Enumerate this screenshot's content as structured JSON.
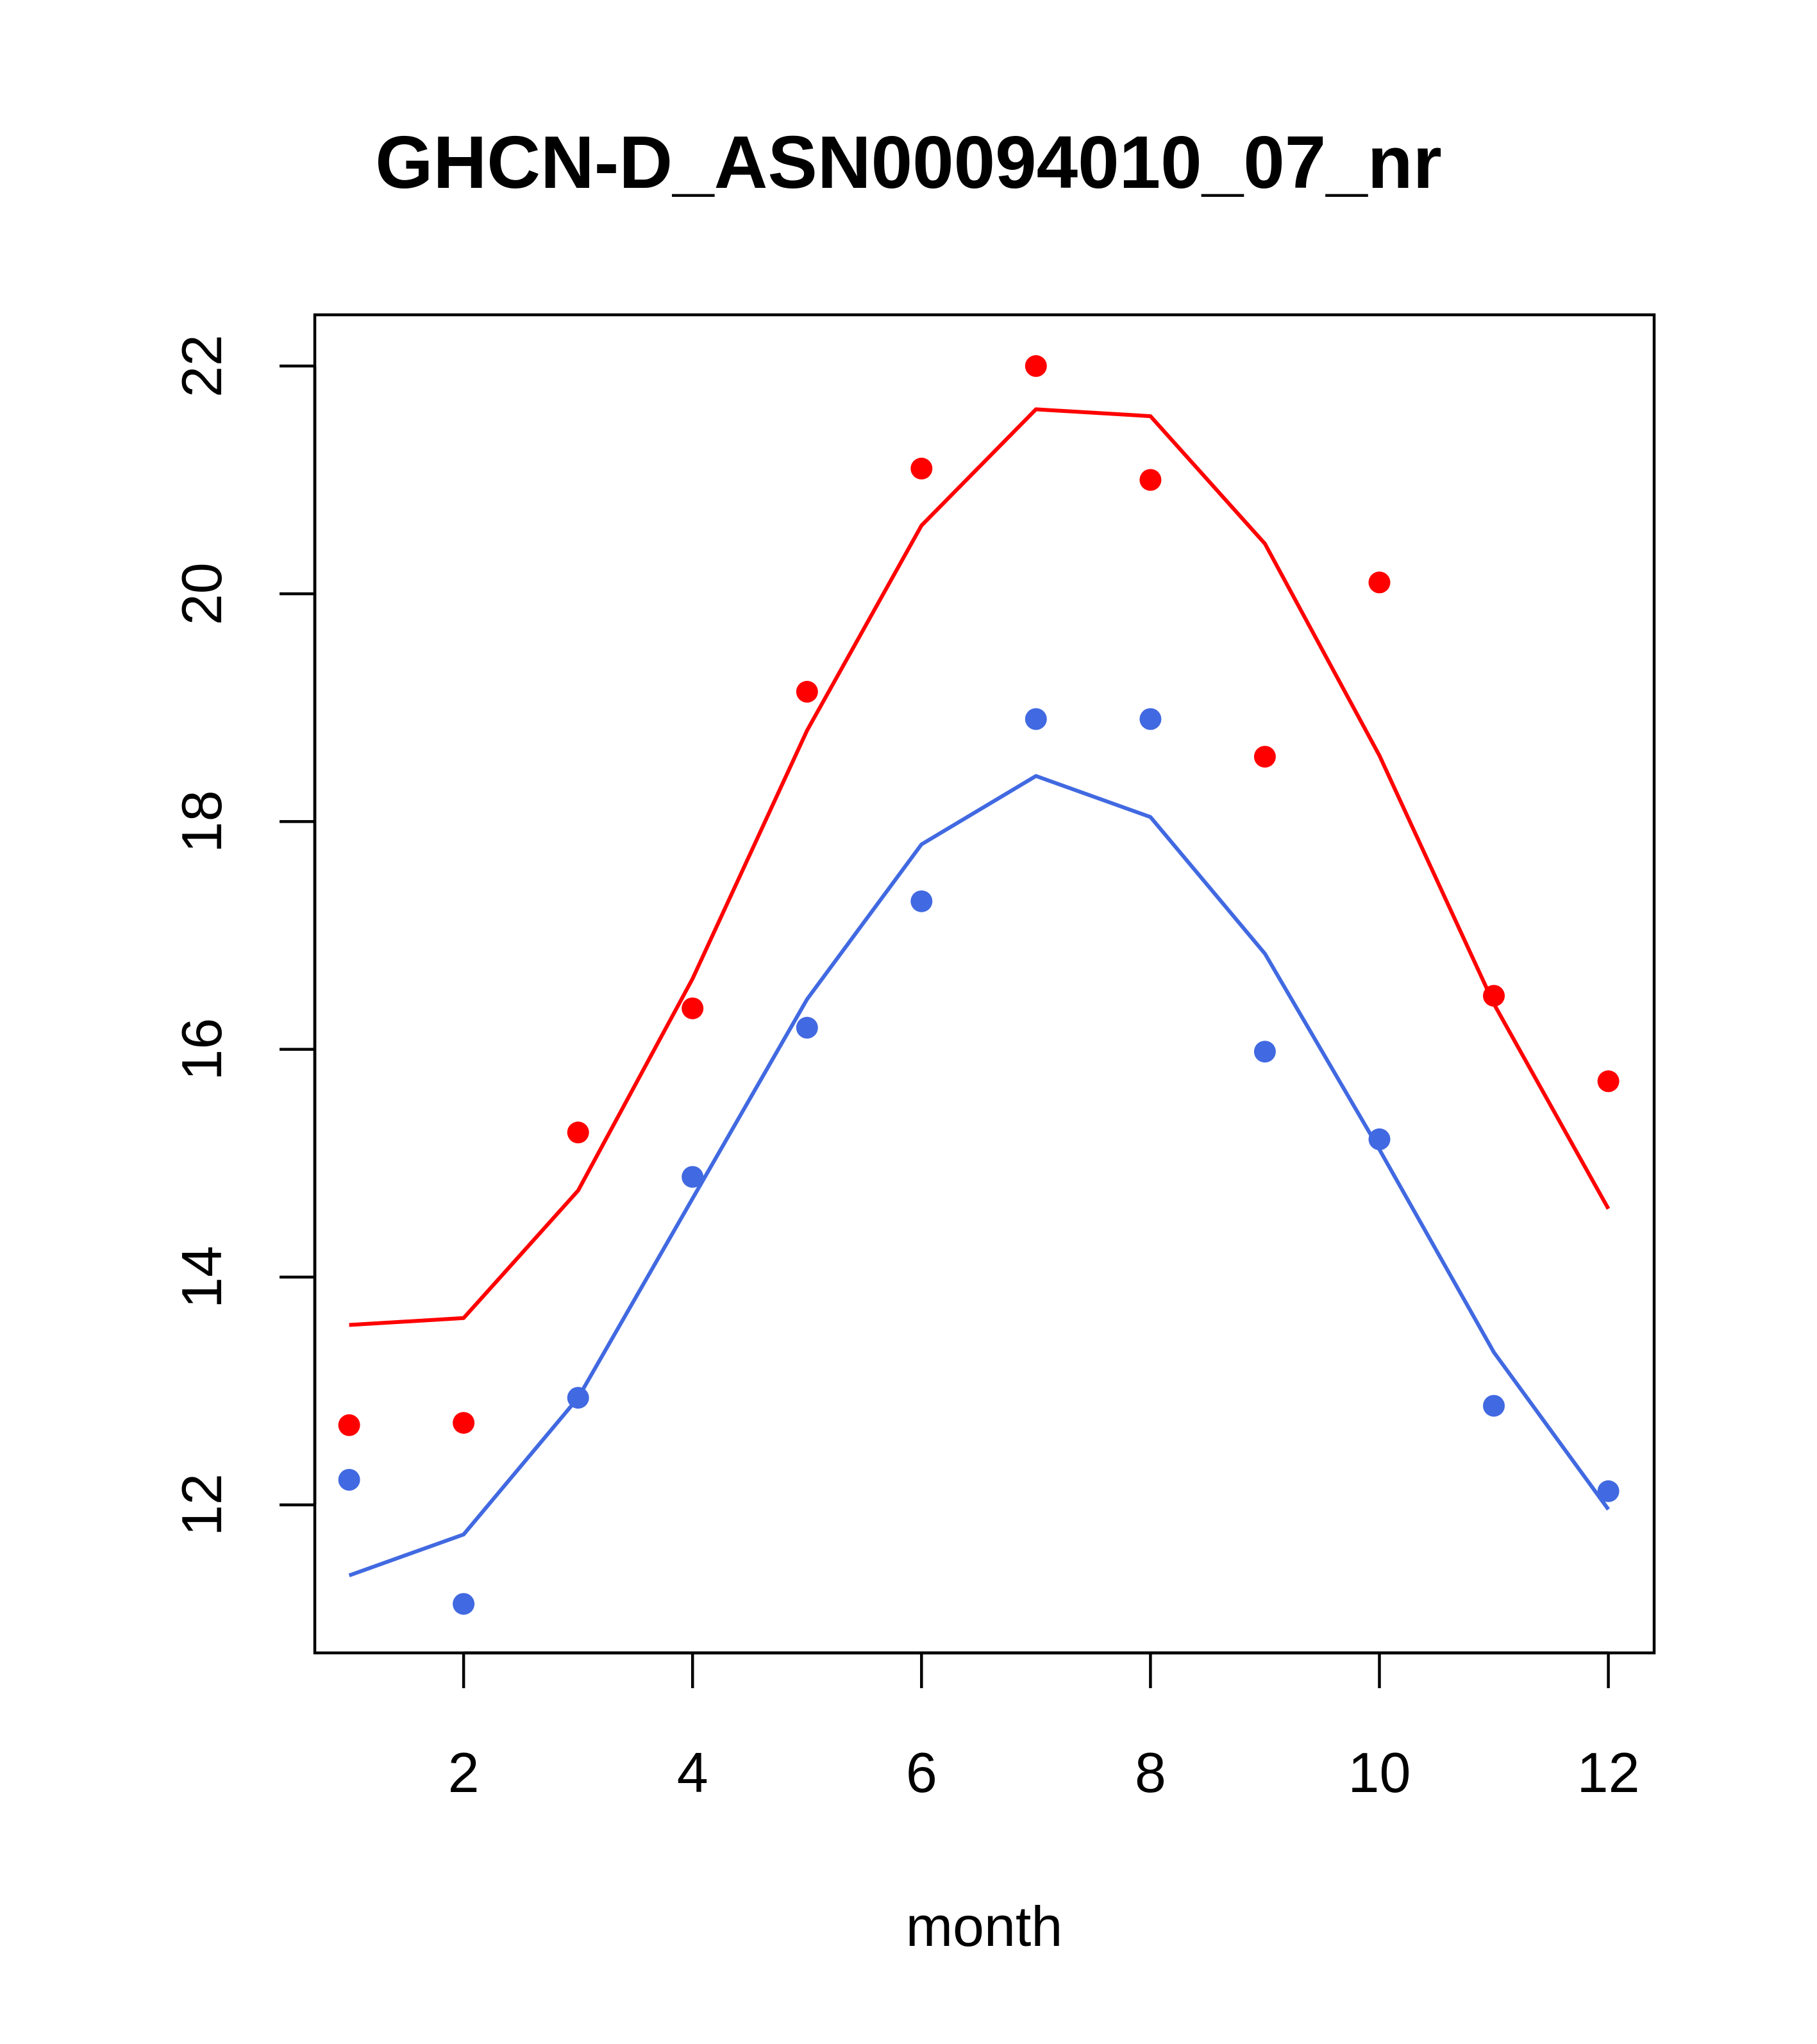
{
  "chart_data": {
    "type": "line",
    "title": "GHCN-D_ASN00094010_07_nr",
    "xlabel": "month",
    "ylabel": "",
    "xlim": [
      0.7,
      12.4
    ],
    "ylim": [
      10.7,
      22.45
    ],
    "x_ticks": [
      2,
      4,
      6,
      8,
      10,
      12
    ],
    "y_ticks": [
      12,
      14,
      16,
      18,
      20,
      22
    ],
    "grid": false,
    "legend": "none",
    "series": [
      {
        "color": "#ff0000",
        "points_x": [
          1,
          2,
          3,
          4,
          5,
          6,
          7,
          8,
          9,
          10,
          11,
          12
        ],
        "points_y": [
          12.7,
          12.72,
          15.27,
          16.36,
          19.14,
          21.1,
          22.0,
          21.0,
          18.57,
          20.1,
          16.47,
          15.72
        ],
        "line_x": [
          1,
          2,
          3,
          4,
          5,
          6,
          7,
          8,
          9,
          10,
          11,
          12
        ],
        "line_y": [
          13.58,
          13.64,
          14.76,
          16.62,
          18.8,
          20.6,
          21.62,
          21.56,
          20.44,
          18.58,
          16.4,
          14.6
        ]
      },
      {
        "color": "#4169e1",
        "points_x": [
          1,
          2,
          3,
          4,
          5,
          6,
          7,
          8,
          9,
          10,
          11,
          12
        ],
        "points_y": [
          12.22,
          11.13,
          12.94,
          14.88,
          16.19,
          17.3,
          18.9,
          18.9,
          15.98,
          15.21,
          12.87,
          12.12
        ],
        "line_x": [
          1,
          2,
          3,
          4,
          5,
          6,
          7,
          8,
          9,
          10,
          11,
          12
        ],
        "line_y": [
          11.38,
          11.74,
          12.94,
          14.69,
          16.44,
          17.8,
          18.4,
          18.04,
          16.84,
          15.12,
          13.34,
          11.96
        ]
      }
    ]
  }
}
